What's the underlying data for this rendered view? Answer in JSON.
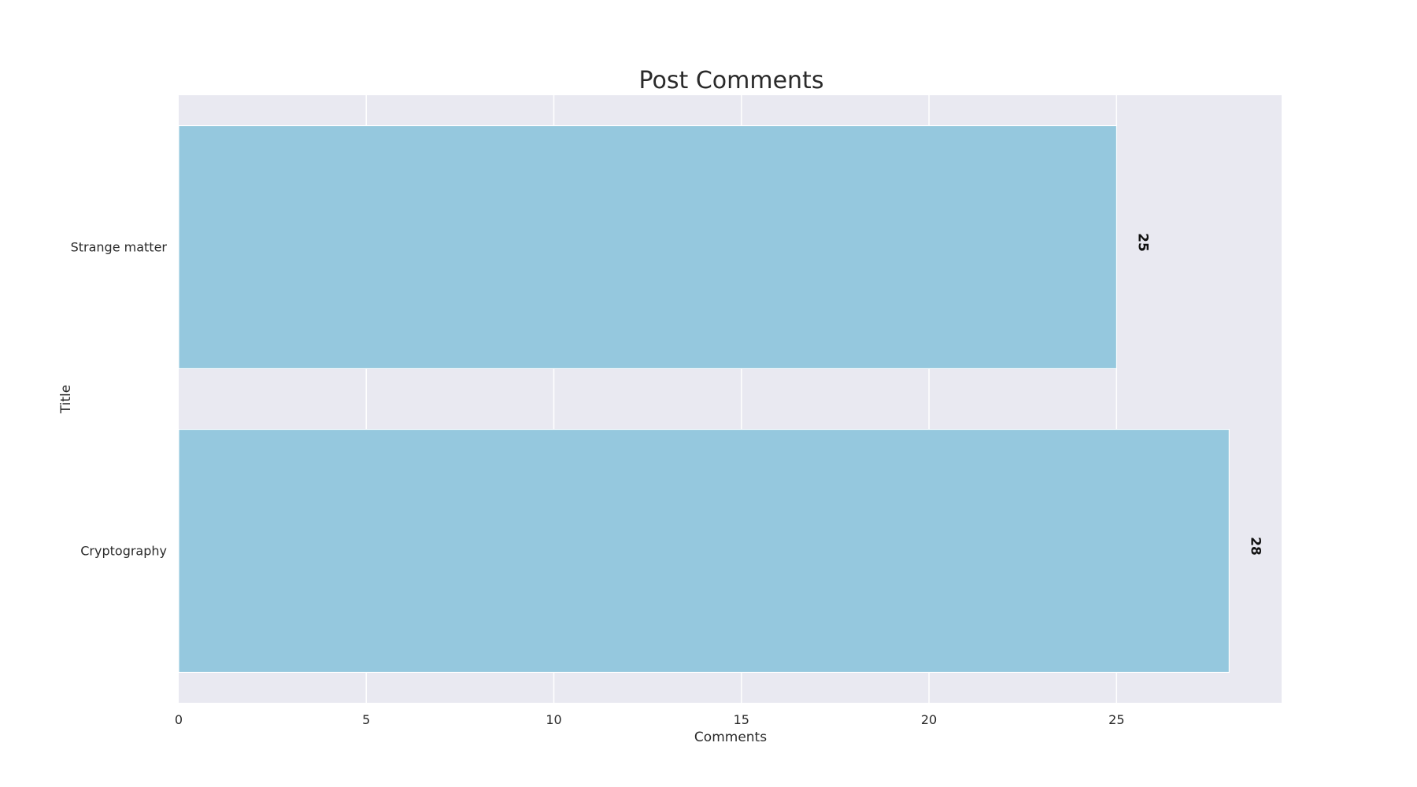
{
  "chart_data": {
    "type": "bar",
    "orientation": "horizontal",
    "title": "Post Comments",
    "xlabel": "Comments",
    "ylabel": "Title",
    "categories": [
      "Strange matter",
      "Cryptography"
    ],
    "values": [
      25,
      28
    ],
    "value_labels": [
      "25",
      "28"
    ],
    "xlim": [
      0,
      29.4
    ],
    "xticks": [
      0,
      5,
      10,
      15,
      20,
      25
    ],
    "xtick_labels": [
      "0",
      "5",
      "10",
      "15",
      "20",
      "25"
    ],
    "grid": true,
    "legend": "none",
    "colors": {
      "bar": "#95c8de",
      "plot_background": "#e9e9f1",
      "grid": "#ffffff"
    }
  }
}
